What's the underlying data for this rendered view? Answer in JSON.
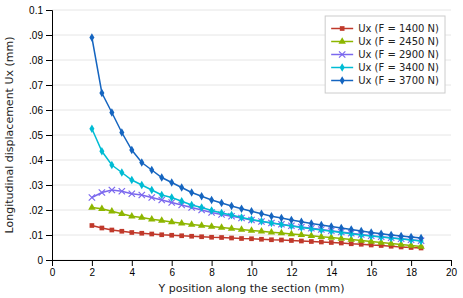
{
  "chart_data": {
    "type": "line",
    "xlabel": "Y position along the section (mm)",
    "ylabel": "Longitudinal displacement Ux (mm)",
    "xlim": [
      0,
      20
    ],
    "ylim": [
      0,
      0.1
    ],
    "xticks": [
      0,
      2,
      4,
      6,
      8,
      10,
      12,
      14,
      16,
      18,
      20
    ],
    "yticks": [
      0,
      {
        "value": 0.01,
        "label": ".01"
      },
      {
        "value": 0.02,
        "label": ".02"
      },
      {
        "value": 0.03,
        "label": ".03"
      },
      {
        "value": 0.04,
        "label": ".04"
      },
      {
        "value": 0.05,
        "label": ".05"
      },
      {
        "value": 0.06,
        "label": ".06"
      },
      {
        "value": 0.07,
        "label": ".07"
      },
      {
        "value": 0.08,
        "label": ".08"
      },
      {
        "value": 0.09,
        "label": ".09"
      },
      0.1
    ],
    "grid": true,
    "legend": "upper right",
    "x": [
      2,
      2.5,
      3,
      3.5,
      4,
      4.5,
      5,
      5.5,
      6,
      6.5,
      7,
      7.5,
      8,
      8.5,
      9,
      9.5,
      10,
      10.5,
      11,
      11.5,
      12,
      12.5,
      13,
      13.5,
      14,
      14.5,
      15,
      15.5,
      16,
      16.5,
      17,
      17.5,
      18,
      18.5
    ],
    "series": [
      {
        "name": "Ux (F = 1400 N)",
        "color": "#c0392b",
        "marker": "square",
        "values": [
          0.0138,
          0.0128,
          0.012,
          0.0115,
          0.011,
          0.0107,
          0.0104,
          0.0101,
          0.0099,
          0.0097,
          0.0095,
          0.0093,
          0.0091,
          0.009,
          0.0088,
          0.0086,
          0.0085,
          0.0083,
          0.0081,
          0.008,
          0.0078,
          0.0076,
          0.0074,
          0.0072,
          0.007,
          0.0068,
          0.0065,
          0.0063,
          0.006,
          0.0058,
          0.0055,
          0.0052,
          0.005,
          0.0048
        ]
      },
      {
        "name": "Ux (F = 2450 N)",
        "color": "#8db600",
        "marker": "triangle",
        "values": [
          0.021,
          0.0205,
          0.0195,
          0.0185,
          0.0175,
          0.017,
          0.0163,
          0.0158,
          0.0152,
          0.0147,
          0.0142,
          0.0138,
          0.0134,
          0.013,
          0.0126,
          0.0122,
          0.0118,
          0.0115,
          0.0111,
          0.0108,
          0.0104,
          0.0101,
          0.0097,
          0.0093,
          0.009,
          0.0086,
          0.0082,
          0.0078,
          0.0074,
          0.007,
          0.0066,
          0.0062,
          0.0058,
          0.0054
        ]
      },
      {
        "name": "Ux (F = 2900 N)",
        "color": "#7b68ee",
        "marker": "x",
        "values": [
          0.025,
          0.027,
          0.028,
          0.0275,
          0.0265,
          0.026,
          0.025,
          0.024,
          0.023,
          0.022,
          0.021,
          0.02,
          0.019,
          0.0182,
          0.0175,
          0.0168,
          0.016,
          0.0154,
          0.0148,
          0.0143,
          0.0137,
          0.0132,
          0.0127,
          0.0122,
          0.0117,
          0.0112,
          0.0107,
          0.0102,
          0.0097,
          0.0093,
          0.0089,
          0.0085,
          0.0081,
          0.0077
        ]
      },
      {
        "name": "Ux (F = 3400 N)",
        "color": "#00bcd4",
        "marker": "diamond",
        "values": [
          0.0525,
          0.0435,
          0.038,
          0.035,
          0.032,
          0.03,
          0.028,
          0.026,
          0.025,
          0.0235,
          0.022,
          0.021,
          0.0198,
          0.0188,
          0.018,
          0.017,
          0.0162,
          0.0155,
          0.0148,
          0.0142,
          0.0136,
          0.013,
          0.0125,
          0.012,
          0.0115,
          0.011,
          0.0105,
          0.01,
          0.0096,
          0.0092,
          0.0088,
          0.0084,
          0.008,
          0.0076
        ]
      },
      {
        "name": "Ux (F = 3700 N)",
        "color": "#1565c0",
        "marker": "diamond",
        "values": [
          0.089,
          0.0668,
          0.059,
          0.051,
          0.044,
          0.039,
          0.036,
          0.033,
          0.031,
          0.029,
          0.027,
          0.0255,
          0.024,
          0.0228,
          0.0216,
          0.0205,
          0.0195,
          0.0185,
          0.0175,
          0.0168,
          0.016,
          0.0153,
          0.0146,
          0.014,
          0.0134,
          0.0128,
          0.0122,
          0.0116,
          0.011,
          0.0105,
          0.01,
          0.0096,
          0.0092,
          0.0088
        ]
      }
    ]
  }
}
